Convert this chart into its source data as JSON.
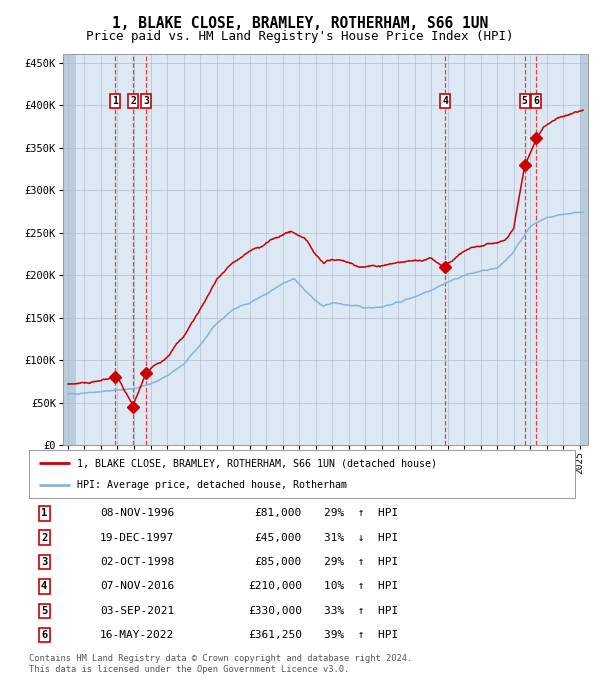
{
  "title": "1, BLAKE CLOSE, BRAMLEY, ROTHERHAM, S66 1UN",
  "subtitle": "Price paid vs. HM Land Registry's House Price Index (HPI)",
  "title_fontsize": 10.5,
  "subtitle_fontsize": 9,
  "ylim": [
    0,
    460000
  ],
  "yticks": [
    0,
    50000,
    100000,
    150000,
    200000,
    250000,
    300000,
    350000,
    400000,
    450000
  ],
  "ytick_labels": [
    "£0",
    "£50K",
    "£100K",
    "£150K",
    "£200K",
    "£250K",
    "£300K",
    "£350K",
    "£400K",
    "£450K"
  ],
  "xlim_start": 1993.7,
  "xlim_end": 2025.5,
  "background_color": "#dce9f5",
  "hatch_left_end": 1994.5,
  "hatch_right_start": 2025.0,
  "hatch_color": "#b8cede",
  "grid_color": "#b0b8c8",
  "red_line_color": "#cc0000",
  "blue_line_color": "#85b5d8",
  "sale_marker_color": "#cc0000",
  "vline_color": "#ee3333",
  "legend_label_red": "1, BLAKE CLOSE, BRAMLEY, ROTHERHAM, S66 1UN (detached house)",
  "legend_label_blue": "HPI: Average price, detached house, Rotherham",
  "footer_text": "Contains HM Land Registry data © Crown copyright and database right 2024.\nThis data is licensed under the Open Government Licence v3.0.",
  "sales": [
    {
      "num": 1,
      "date_year": 1996.86,
      "price": 81000,
      "date_str": "08-NOV-1996",
      "pct": "29%",
      "dir": "↑"
    },
    {
      "num": 2,
      "date_year": 1997.96,
      "price": 45000,
      "date_str": "19-DEC-1997",
      "pct": "31%",
      "dir": "↓"
    },
    {
      "num": 3,
      "date_year": 1998.75,
      "price": 85000,
      "date_str": "02-OCT-1998",
      "pct": "29%",
      "dir": "↑"
    },
    {
      "num": 4,
      "date_year": 2016.85,
      "price": 210000,
      "date_str": "07-NOV-2016",
      "pct": "10%",
      "dir": "↑"
    },
    {
      "num": 5,
      "date_year": 2021.67,
      "price": 330000,
      "date_str": "03-SEP-2021",
      "pct": "33%",
      "dir": "↑"
    },
    {
      "num": 6,
      "date_year": 2022.37,
      "price": 361250,
      "date_str": "16-MAY-2022",
      "pct": "39%",
      "dir": "↑"
    }
  ]
}
